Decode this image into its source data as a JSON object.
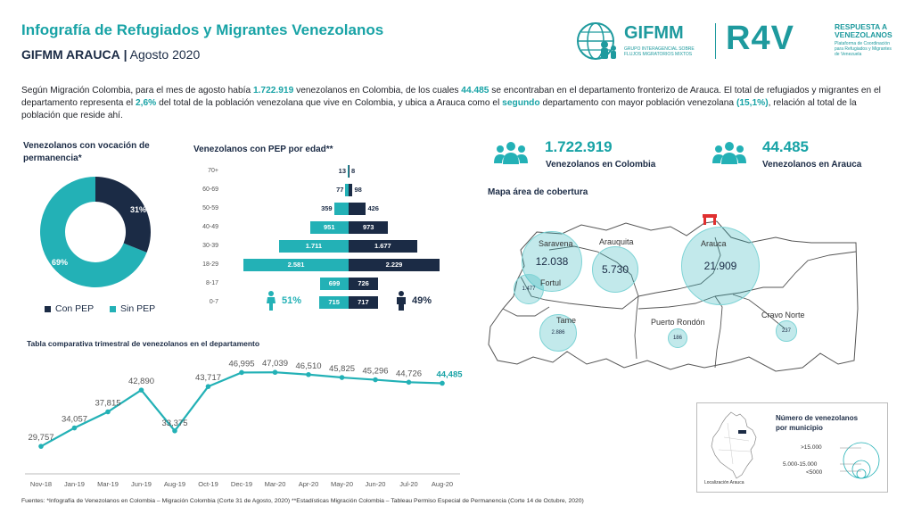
{
  "header": {
    "title": "Infografía de Refugiados y Migrantes Venezolanos",
    "subtitle_bold": "GIFMM ARAUCA",
    "subtitle_sep": "|",
    "subtitle_date": "Agosto 2020"
  },
  "logos": {
    "gifmm_name": "GIFMM",
    "gifmm_line1": "GRUPO INTERAGENCIAL SOBRE",
    "gifmm_line2": "FLUJOS MIGRATORIOS MIXTOS",
    "r4v_name": "R4V",
    "r4v_line1": "RESPUESTA A",
    "r4v_line2": "VENEZOLANOS",
    "r4v_sub1": "Plataforma de Coordinación",
    "r4v_sub2": "para Refugiados y Migrantes",
    "r4v_sub3": "de Venezuela"
  },
  "intro": {
    "p1": "Según Migración Colombia, para el mes de agosto había ",
    "n1": "1.722.919",
    "p2": " venezolanos en Colombia, de los cuales ",
    "n2": "44.485",
    "p3": " se encontraban en el departamento fronterizo de Arauca. El total de refugiados y migrantes en el departamento representa el ",
    "n3": "2,6%",
    "p4": " del total de la población venezolana que vive en Colombia, y ubica a Arauca como el ",
    "n4": "segundo",
    "p5": " departamento con mayor población venezolana ",
    "n5": "(15,1%)",
    "p6": ", relación al total de la población que reside ahí."
  },
  "donut": {
    "title": "Venezolanos con vocación de permanencia*",
    "con_pep_pct": 31,
    "sin_pep_pct": 69,
    "con_pep_label": "31%",
    "sin_pep_label": "69%",
    "legend_con": "Con PEP",
    "legend_sin": "Sin PEP",
    "color_con": "#1b2b45",
    "color_sin": "#23b1b6"
  },
  "pyramid": {
    "title": "Venezolanos con PEP por edad**",
    "female_pct": "51%",
    "male_pct": "49%",
    "rows": [
      {
        "age": "70+",
        "f": 13,
        "m": 8,
        "f_lbl": "13",
        "m_lbl": "8"
      },
      {
        "age": "60-69",
        "f": 77,
        "m": 98,
        "f_lbl": "77",
        "m_lbl": "98"
      },
      {
        "age": "50-59",
        "f": 359,
        "m": 426,
        "f_lbl": "359",
        "m_lbl": "426"
      },
      {
        "age": "40-49",
        "f": 951,
        "m": 973,
        "f_lbl": "951",
        "m_lbl": "973"
      },
      {
        "age": "30-39",
        "f": 1711,
        "m": 1677,
        "f_lbl": "1.711",
        "m_lbl": "1.677"
      },
      {
        "age": "18-29",
        "f": 2581,
        "m": 2229,
        "f_lbl": "2.581",
        "m_lbl": "2.229"
      },
      {
        "age": "8-17",
        "f": 699,
        "m": 726,
        "f_lbl": "699",
        "m_lbl": "726"
      },
      {
        "age": "0-7",
        "f": 715,
        "m": 717,
        "f_lbl": "715",
        "m_lbl": "717"
      }
    ]
  },
  "stats": {
    "colombia_value": "1.722.919",
    "colombia_label": "Venezolanos en Colombia",
    "arauca_value": "44.485",
    "arauca_label": "Venezolanos en Arauca"
  },
  "map": {
    "title": "Mapa área de cobertura",
    "municipalities": [
      {
        "name": "Saravena",
        "value": "12.038"
      },
      {
        "name": "Arauquita",
        "value": "5.730"
      },
      {
        "name": "Arauca",
        "value": "21.909"
      },
      {
        "name": "Fortul",
        "value": "1.477"
      },
      {
        "name": "Tame",
        "value": "2.886"
      },
      {
        "name": "Puerto Rondón",
        "value": "186"
      },
      {
        "name": "Cravo Norte",
        "value": "237"
      }
    ],
    "legend_title_1": "Número de venezolanos",
    "legend_title_2": "por municipio",
    "legend_big": ">15.000",
    "legend_mid": "5.000-15.000",
    "legend_small": "<5000",
    "legend_loc": "Localización Arauca"
  },
  "chart_data": {
    "type": "line",
    "title": "Tabla comparativa trimestral de venezolanos en el departamento",
    "categories": [
      "Nov-18",
      "Jan-19",
      "Mar-19",
      "Jun-19",
      "Aug-19",
      "Oct-19",
      "Dec-19",
      "Mar-20",
      "Apr-20",
      "May-20",
      "Jun-20",
      "Jul-20",
      "Aug-20"
    ],
    "values": [
      29757,
      34057,
      37815,
      42890,
      33375,
      43717,
      46995,
      47039,
      46510,
      45825,
      45296,
      44726,
      44485
    ],
    "labels": [
      "29,757",
      "34,057",
      "37,815",
      "42,890",
      "33,375",
      "43,717",
      "46,995",
      "47,039",
      "46,510",
      "45,825",
      "45,296",
      "44,726",
      "44,485"
    ],
    "color": "#23b1b6",
    "last_label_color": "#18a3a6"
  },
  "footnote": "Fuentes: *Infografía de Venezolanos en Colombia – Migración Colombia (Corte 31 de Agosto, 2020) **Estadísticas Migración Colombia – Tableau Permiso Especial de Permanencia (Corte 14 de Octubre, 2020)"
}
